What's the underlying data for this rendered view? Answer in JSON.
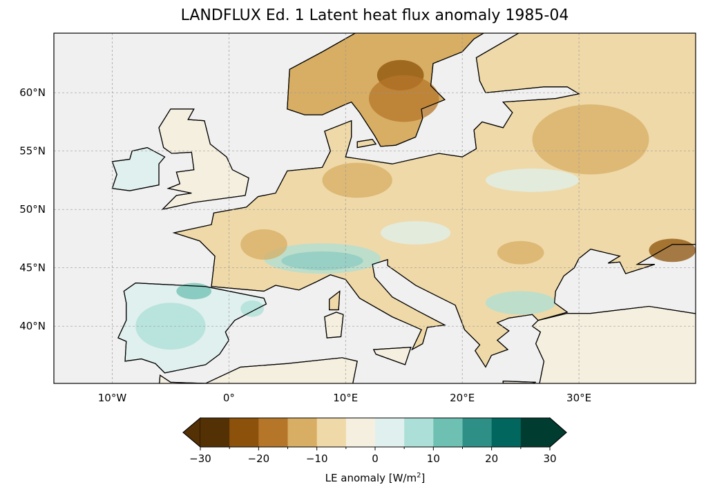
{
  "title": "LANDFLUX Ed. 1 Latent heat flux anomaly 1985-04",
  "map": {
    "extent": {
      "lon": [
        -15,
        40
      ],
      "lat": [
        35.1,
        65.1
      ]
    },
    "ocean_color": "#f0f0f0",
    "lon_ticks": [
      {
        "value": -10,
        "label": "10°W"
      },
      {
        "value": 0,
        "label": "0°"
      },
      {
        "value": 10,
        "label": "10°E"
      },
      {
        "value": 20,
        "label": "20°E"
      },
      {
        "value": 30,
        "label": "30°E"
      }
    ],
    "lat_ticks": [
      {
        "value": 60,
        "label": "60°N"
      },
      {
        "value": 55,
        "label": "55°N"
      },
      {
        "value": 50,
        "label": "50°N"
      },
      {
        "value": 45,
        "label": "45°N"
      },
      {
        "value": 40,
        "label": "40°N"
      }
    ]
  },
  "colorbar": {
    "label": "LE anomaly [W/m",
    "label_sup": "2",
    "label_end": "]",
    "min": -30,
    "max": 30,
    "step": 5,
    "extend": "both",
    "colors": [
      "#543005",
      "#8c510a",
      "#b5762a",
      "#d7ae64",
      "#efd9a8",
      "#f5efdf",
      "#dff0ee",
      "#acdfd7",
      "#6dc0b2",
      "#2e8f87",
      "#01665e",
      "#003c30"
    ],
    "under_color": "#543005",
    "over_color": "#003c30",
    "ticks": [
      {
        "value": -30,
        "label": "−30"
      },
      {
        "value": -20,
        "label": "−20"
      },
      {
        "value": -10,
        "label": "−10"
      },
      {
        "value": 0,
        "label": "0"
      },
      {
        "value": 10,
        "label": "10"
      },
      {
        "value": 20,
        "label": "20"
      },
      {
        "value": 30,
        "label": "30"
      }
    ]
  }
}
